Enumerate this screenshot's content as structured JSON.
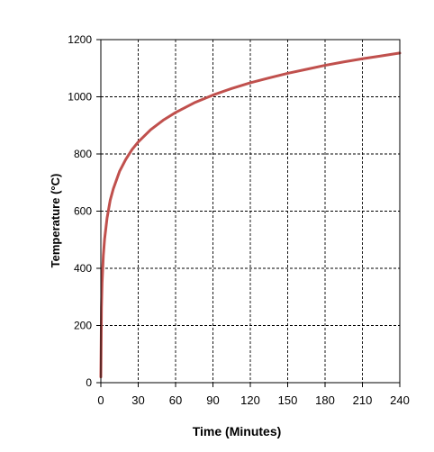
{
  "chart_data": {
    "type": "line",
    "title": "",
    "xlabel": "Time (Minutes)",
    "ylabel": "Temperature (°C)",
    "xlim": [
      0,
      240
    ],
    "ylim": [
      0,
      1200
    ],
    "xticks": [
      0,
      30,
      60,
      90,
      120,
      150,
      180,
      210,
      240
    ],
    "yticks": [
      0,
      200,
      400,
      600,
      800,
      1000,
      1200
    ],
    "grid": true,
    "legend": "none",
    "series": [
      {
        "color": "#c0504d",
        "x": [
          0,
          0.5,
          1,
          2,
          3,
          5,
          7.5,
          10,
          15,
          20,
          25,
          30,
          40,
          50,
          60,
          75,
          90,
          105,
          120,
          135,
          150,
          165,
          180,
          195,
          210,
          225,
          240
        ],
        "y": [
          20,
          261,
          349,
          445,
          502,
          576,
          638,
          678,
          739,
          781,
          815,
          842,
          885,
          918,
          945,
          979,
          1006,
          1029,
          1049,
          1066,
          1082,
          1096,
          1110,
          1122,
          1133,
          1143,
          1153
        ]
      }
    ]
  }
}
